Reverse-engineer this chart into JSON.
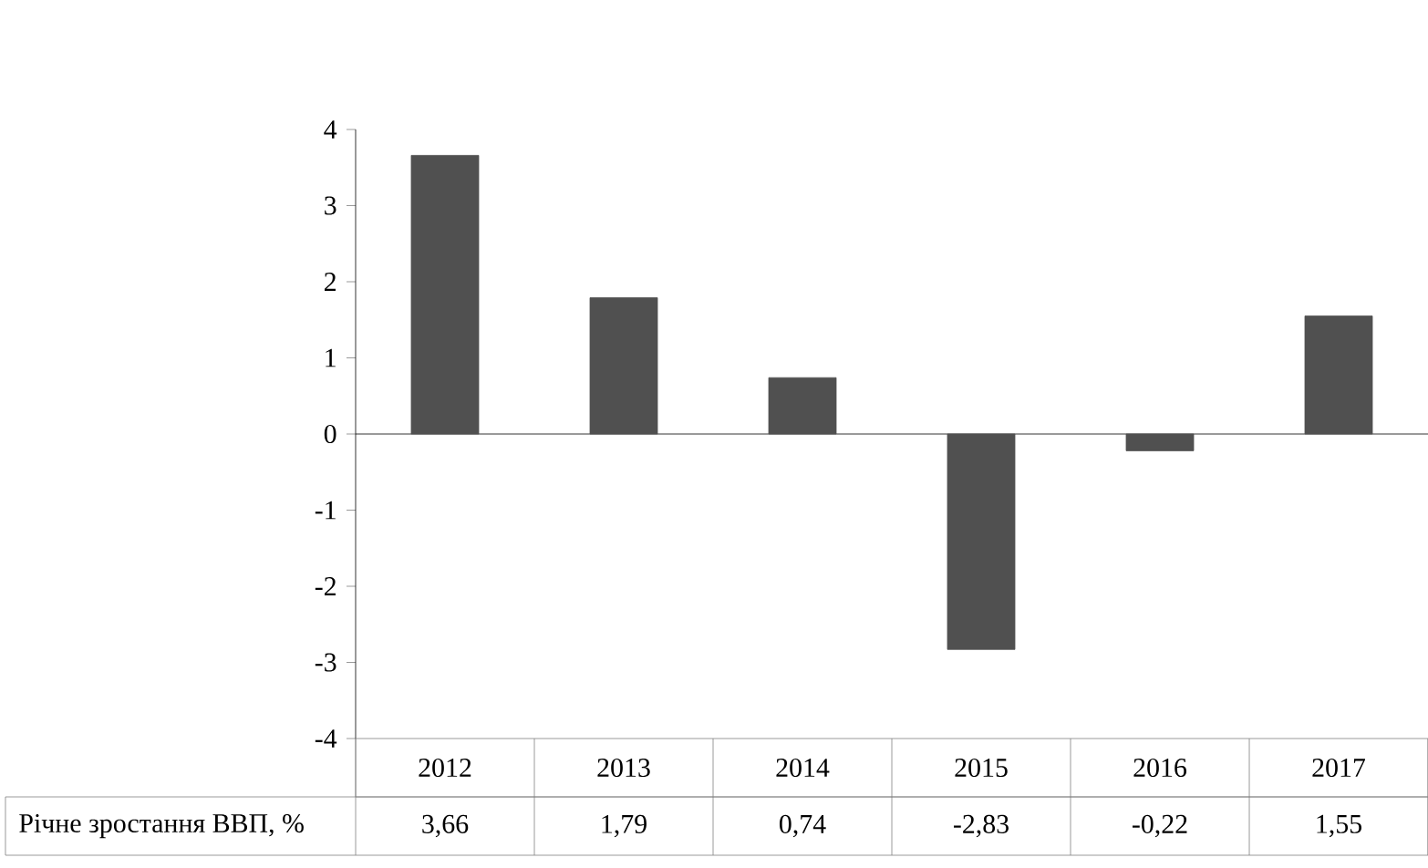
{
  "chart_data": {
    "type": "bar",
    "categories": [
      "2012",
      "2013",
      "2014",
      "2015",
      "2016",
      "2017"
    ],
    "series": [
      {
        "name": "Річне зростання ВВП, %",
        "color": "#505050",
        "values": [
          3.66,
          1.79,
          0.74,
          -2.83,
          -0.22,
          1.55
        ],
        "value_labels": [
          "3,66",
          "1,79",
          "0,74",
          "-2,83",
          "-0,22",
          "1,55"
        ]
      }
    ],
    "ylim": [
      -4,
      4
    ],
    "yticks": [
      -4,
      -3,
      -2,
      -1,
      0,
      1,
      2,
      3,
      4
    ]
  }
}
